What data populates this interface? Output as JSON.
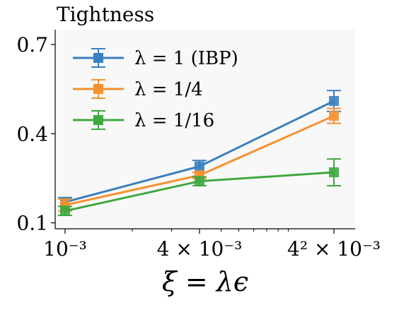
{
  "chart_data": {
    "type": "line",
    "title": "Tightness",
    "xlabel": "ξ = λϵ",
    "ylabel": "",
    "x_scale": "log",
    "x": [
      0.001,
      0.004,
      0.016
    ],
    "x_tick_labels": [
      "10⁻³",
      "4 × 10⁻³",
      "4² × 10⁻³"
    ],
    "y_ticks": [
      0.1,
      0.4,
      0.7
    ],
    "y_tick_labels": [
      "0.1",
      "0.4",
      "0.7"
    ],
    "ylim": [
      0.08,
      0.75
    ],
    "grid": false,
    "legend_position": "top-left",
    "series": [
      {
        "name": "λ = 1 (IBP)",
        "color": "#3a7fbf",
        "values": [
          0.17,
          0.29,
          0.51
        ],
        "errors": [
          0.015,
          0.02,
          0.035
        ]
      },
      {
        "name": "λ = 1/4",
        "color": "#f5912f",
        "values": [
          0.16,
          0.26,
          0.46
        ],
        "errors": [
          0.02,
          0.01,
          0.025
        ]
      },
      {
        "name": "λ = 1/16",
        "color": "#3fa83f",
        "values": [
          0.14,
          0.24,
          0.27
        ],
        "errors": [
          0.015,
          0.015,
          0.045
        ]
      }
    ]
  }
}
